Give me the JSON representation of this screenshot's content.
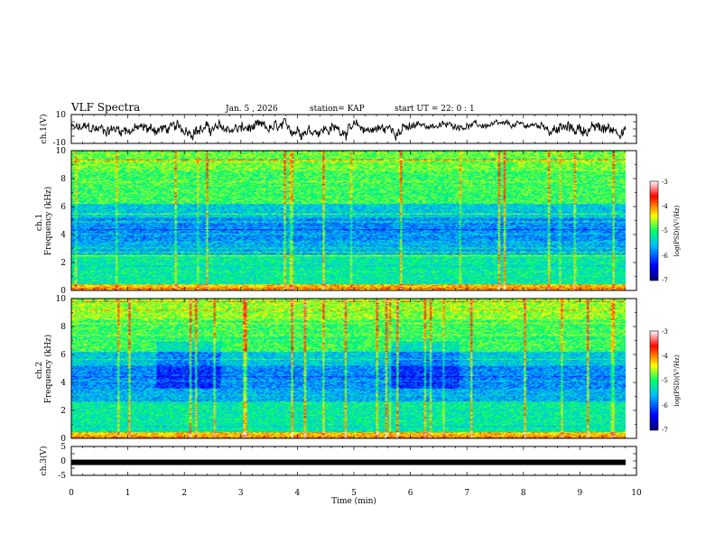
{
  "header": {
    "title": "VLF Spectra",
    "date": "Jan. 5 , 2026",
    "station": "station= KAP",
    "start": "start  UT =  22: 0  : 1"
  },
  "chart_data": [
    {
      "type": "line",
      "name": "ch1-waveform",
      "ylabel": "ch.1(V)",
      "ylim": [
        -10,
        10
      ],
      "y_ticks": [
        "10",
        "-10"
      ],
      "xlim": [
        0,
        9.8
      ],
      "note": "noisy waveform roughly between -8 and 8 V; slightly lower amplitude around 7 min"
    },
    {
      "type": "heatmap",
      "name": "ch1-spectrogram",
      "ylabel": "ch.1\nFrequency (kHz)",
      "ylim": [
        0,
        10
      ],
      "y_ticks": [
        "0",
        "2",
        "4",
        "6",
        "8",
        "10"
      ],
      "colorbar": {
        "label": "log(PSD)(V²/Hz)",
        "range": [
          -7,
          -3
        ],
        "ticks": [
          "-3",
          "-4",
          "-5",
          "-6",
          "-7"
        ]
      }
    },
    {
      "type": "heatmap",
      "name": "ch2-spectrogram",
      "ylabel": "ch.2\nFrequency (kHz)",
      "ylim": [
        0,
        10
      ],
      "y_ticks": [
        "0",
        "2",
        "4",
        "6",
        "8",
        "10"
      ],
      "colorbar": {
        "label": "log(PSD)(V²/Hz)",
        "range": [
          -7,
          -3
        ],
        "ticks": [
          "-3",
          "-4",
          "-5",
          "-6",
          "-7"
        ]
      }
    },
    {
      "type": "line",
      "name": "ch3-level",
      "ylabel": "ch.3(V)",
      "ylim": [
        -5,
        5
      ],
      "y_ticks": [
        "5",
        "0",
        "-5"
      ],
      "value": -0.5,
      "xlim": [
        0,
        9.8
      ]
    }
  ],
  "xaxis": {
    "label": "Time (min)",
    "range": [
      0,
      10
    ],
    "ticks": [
      "0",
      "1",
      "2",
      "3",
      "4",
      "5",
      "6",
      "7",
      "8",
      "9",
      "10"
    ]
  },
  "colorscale": {
    "stops": [
      "#00007f",
      "#0000ff",
      "#00bfff",
      "#00ff66",
      "#ffff00",
      "#ff0000",
      "#ffffff"
    ]
  }
}
